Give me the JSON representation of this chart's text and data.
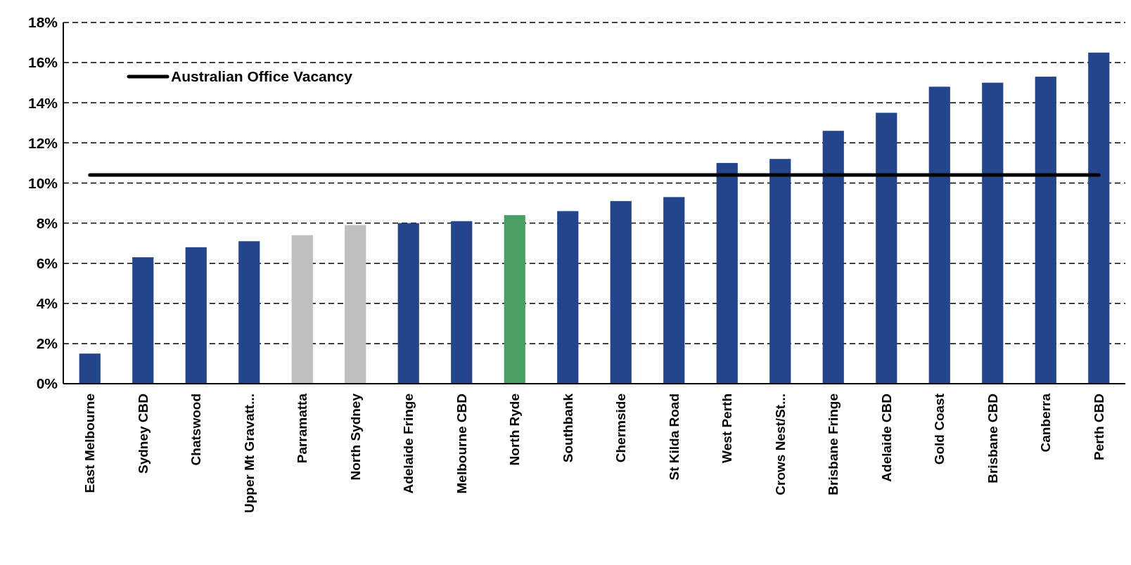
{
  "chart_data": {
    "type": "bar",
    "categories": [
      "East Melbourne",
      "Sydney CBD",
      "Chatswood",
      "Upper Mt Gravatt...",
      "Parramatta",
      "North Sydney",
      "Adelaide Fringe",
      "Melbourne CBD",
      "North Ryde",
      "Southbank",
      "Chermside",
      "St Kilda Road",
      "West Perth",
      "Crows Nest/St...",
      "Brisbane Fringe",
      "Adelaide CBD",
      "Gold Coast",
      "Brisbane CBD",
      "Canberra",
      "Perth CBD"
    ],
    "series": [
      {
        "values": [
          1.5,
          6.3,
          6.8,
          7.1,
          7.4,
          7.9,
          8.0,
          8.1,
          8.4,
          8.6,
          9.1,
          9.3,
          11.0,
          11.2,
          12.6,
          13.5,
          14.8,
          15.0,
          15.3,
          16.5
        ],
        "colors": [
          "#24458c",
          "#24458c",
          "#24458c",
          "#24458c",
          "#bfbfbf",
          "#bfbfbf",
          "#24458c",
          "#24458c",
          "#4aa064",
          "#24458c",
          "#24458c",
          "#24458c",
          "#24458c",
          "#24458c",
          "#24458c",
          "#24458c",
          "#24458c",
          "#24458c",
          "#24458c",
          "#24458c"
        ]
      },
      {
        "type": "line",
        "name": "Australian Office Vacancy",
        "color": "#000000",
        "values": [
          10.4,
          10.4,
          10.4,
          10.4,
          10.4,
          10.4,
          10.4,
          10.4,
          10.4,
          10.4,
          10.4,
          10.4,
          10.4,
          10.4,
          10.4,
          10.4,
          10.4,
          10.4,
          10.4,
          10.4
        ]
      }
    ],
    "ylim": [
      0,
      18
    ],
    "yticks": [
      {
        "value": 0,
        "label": "0%"
      },
      {
        "value": 2,
        "label": "2%"
      },
      {
        "value": 4,
        "label": "4%"
      },
      {
        "value": 6,
        "label": "6%"
      },
      {
        "value": 8,
        "label": "8%"
      },
      {
        "value": 10,
        "label": "10%"
      },
      {
        "value": 12,
        "label": "12%"
      },
      {
        "value": 14,
        "label": "14%"
      },
      {
        "value": 16,
        "label": "16%"
      },
      {
        "value": 18,
        "label": "18%"
      }
    ],
    "grid": "y",
    "legend": "top left"
  }
}
